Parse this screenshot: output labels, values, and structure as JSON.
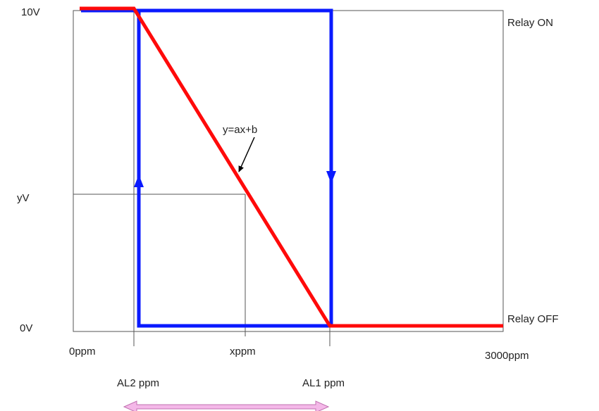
{
  "y_labels": {
    "top": "10V",
    "mid": "yV",
    "bottom": "0V"
  },
  "x_labels": {
    "start": "0ppm",
    "x": "xppm",
    "end": "3000ppm",
    "al2": "AL2 ppm",
    "al1": "AL1 ppm"
  },
  "relay_labels": {
    "on": "Relay ON",
    "off": "Relay OFF"
  },
  "formula": "y=ax+b",
  "colors": {
    "relay": "#0a1aff",
    "output": "#ff0a0a",
    "arrow_fill": "#f4b8e8",
    "arrow_stroke": "#c070b0",
    "grid": "#555555"
  }
}
